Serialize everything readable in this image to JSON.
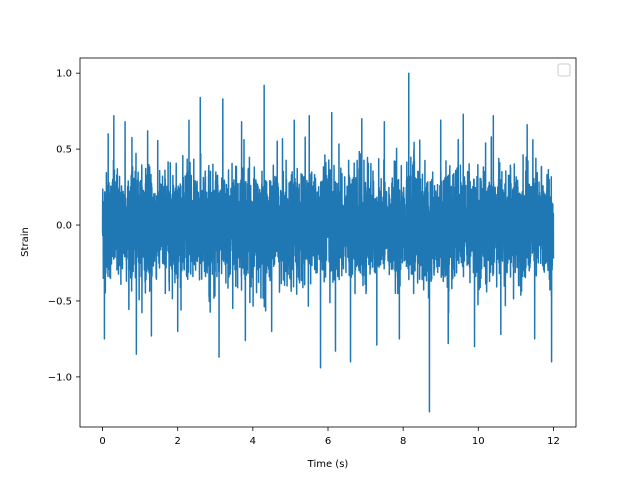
{
  "chart_data": {
    "type": "line",
    "title": "",
    "xlabel": "Time (s)",
    "ylabel": "Strain",
    "xlim": [
      -0.6,
      12.6
    ],
    "ylim": [
      -1.33,
      1.1
    ],
    "xticks": [
      0,
      2,
      4,
      6,
      8,
      10,
      12
    ],
    "yticks": [
      -1.0,
      -0.5,
      0.0,
      0.5,
      1.0
    ],
    "xtick_labels": [
      "0",
      "2",
      "4",
      "6",
      "8",
      "10",
      "12"
    ],
    "ytick_labels": [
      "−1.0",
      "−0.5",
      "0.0",
      "0.5",
      "1.0"
    ],
    "grid": false,
    "legend": {
      "placement": "upper right",
      "entries": []
    },
    "series": [
      {
        "color": "#1f77b4",
        "description_of_signal": "dense noisy strain signal",
        "x_range": [
          0,
          12
        ],
        "typical_band": [
          -0.5,
          0.5
        ],
        "peaks": [
          {
            "x": 0.15,
            "y": 0.6
          },
          {
            "x": 0.3,
            "y": 0.72
          },
          {
            "x": 0.6,
            "y": 0.68
          },
          {
            "x": 1.2,
            "y": 0.62
          },
          {
            "x": 2.3,
            "y": 0.69
          },
          {
            "x": 2.6,
            "y": 0.84
          },
          {
            "x": 3.2,
            "y": 0.83
          },
          {
            "x": 3.7,
            "y": 0.68
          },
          {
            "x": 4.3,
            "y": 0.92
          },
          {
            "x": 5.1,
            "y": 0.69
          },
          {
            "x": 5.5,
            "y": 0.72
          },
          {
            "x": 6.1,
            "y": 0.74
          },
          {
            "x": 6.9,
            "y": 0.7
          },
          {
            "x": 7.5,
            "y": 0.68
          },
          {
            "x": 8.15,
            "y": 1.0
          },
          {
            "x": 9.0,
            "y": 0.69
          },
          {
            "x": 9.6,
            "y": 0.73
          },
          {
            "x": 10.4,
            "y": 0.72
          },
          {
            "x": 11.3,
            "y": 0.66
          },
          {
            "x": 11.95,
            "y": 0.69
          }
        ],
        "troughs": [
          {
            "x": 0.05,
            "y": -0.75
          },
          {
            "x": 0.9,
            "y": -0.85
          },
          {
            "x": 1.3,
            "y": -0.73
          },
          {
            "x": 2.0,
            "y": -0.7
          },
          {
            "x": 3.1,
            "y": -0.87
          },
          {
            "x": 3.8,
            "y": -0.76
          },
          {
            "x": 4.5,
            "y": -0.7
          },
          {
            "x": 5.8,
            "y": -0.94
          },
          {
            "x": 6.2,
            "y": -0.83
          },
          {
            "x": 6.6,
            "y": -0.9
          },
          {
            "x": 7.3,
            "y": -0.79
          },
          {
            "x": 7.9,
            "y": -0.75
          },
          {
            "x": 8.7,
            "y": -1.23
          },
          {
            "x": 9.2,
            "y": -0.78
          },
          {
            "x": 9.9,
            "y": -0.8
          },
          {
            "x": 10.6,
            "y": -0.72
          },
          {
            "x": 11.5,
            "y": -0.75
          },
          {
            "x": 11.95,
            "y": -0.9
          }
        ]
      }
    ]
  }
}
